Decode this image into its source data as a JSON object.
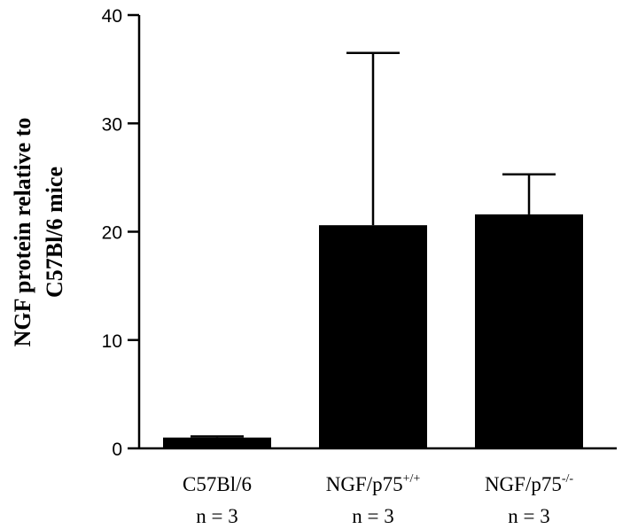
{
  "chart_data": {
    "type": "bar",
    "title": "",
    "ylabel_lines": [
      "NGF protein relative to",
      "C57Bl/6 mice"
    ],
    "xlabel": "",
    "ylim": [
      0,
      40
    ],
    "yticks": [
      "0",
      "10",
      "20",
      "30",
      "40"
    ],
    "categories": [
      {
        "base": "C57Bl/6",
        "sup": "",
        "n": "n = 3"
      },
      {
        "base": "NGF/p75",
        "sup": "+/+",
        "n": "n = 3"
      },
      {
        "base": "NGF/p75",
        "sup": "-/-",
        "n": "n = 3"
      }
    ],
    "values": [
      1.0,
      20.6,
      21.6
    ],
    "error_upper": [
      0.1,
      15.9,
      3.7
    ],
    "bar_color": "#000000",
    "grid": false,
    "legend": "none"
  }
}
